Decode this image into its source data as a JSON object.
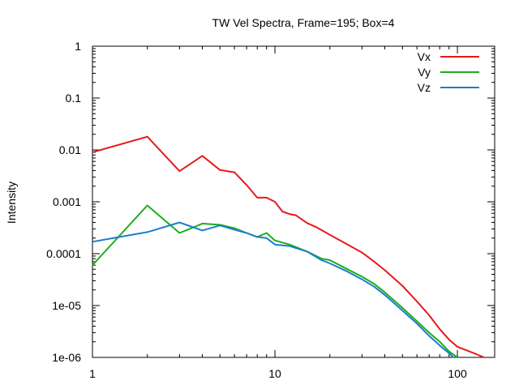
{
  "chart_data": {
    "type": "line",
    "title": "TW Vel Spectra, Frame=195; Box=4",
    "xlabel": "",
    "ylabel": "Intensity",
    "xscale": "log",
    "yscale": "log",
    "xlim": [
      1,
      160
    ],
    "ylim": [
      1e-06,
      1
    ],
    "grid": false,
    "legend_position": "top-right",
    "x_ticks": [
      {
        "value": 1,
        "label": "1"
      },
      {
        "value": 10,
        "label": "10"
      },
      {
        "value": 100,
        "label": "100"
      }
    ],
    "y_ticks": [
      {
        "value": 1,
        "label": "1"
      },
      {
        "value": 0.1,
        "label": "0.1"
      },
      {
        "value": 0.01,
        "label": "0.01"
      },
      {
        "value": 0.001,
        "label": "0.001"
      },
      {
        "value": 0.0001,
        "label": "0.0001"
      },
      {
        "value": 1e-05,
        "label": "1e-05"
      },
      {
        "value": 1e-06,
        "label": "1e-06"
      }
    ],
    "series": [
      {
        "name": "Vx",
        "color": "#e41a1c",
        "points": [
          [
            1,
            0.009
          ],
          [
            2,
            0.018
          ],
          [
            3,
            0.0039
          ],
          [
            4,
            0.0077
          ],
          [
            5,
            0.0041
          ],
          [
            6,
            0.0037
          ],
          [
            7,
            0.0021
          ],
          [
            8,
            0.0012
          ],
          [
            9,
            0.0012
          ],
          [
            10,
            0.001
          ],
          [
            11,
            0.00065
          ],
          [
            12,
            0.00058
          ],
          [
            13,
            0.00055
          ],
          [
            15,
            0.00039
          ],
          [
            17,
            0.00032
          ],
          [
            20,
            0.00023
          ],
          [
            25,
            0.00015
          ],
          [
            30,
            0.000105
          ],
          [
            35,
            7e-05
          ],
          [
            40,
            4.8e-05
          ],
          [
            50,
            2.4e-05
          ],
          [
            60,
            1.2e-05
          ],
          [
            70,
            6.5e-06
          ],
          [
            80,
            3.5e-06
          ],
          [
            90,
            2.2e-06
          ],
          [
            100,
            1.6e-06
          ],
          [
            120,
            1.25e-06
          ],
          [
            140,
            1e-06
          ]
        ]
      },
      {
        "name": "Vy",
        "color": "#1aae1a",
        "points": [
          [
            1,
            6e-05
          ],
          [
            2,
            0.00085
          ],
          [
            3,
            0.00025
          ],
          [
            4,
            0.00038
          ],
          [
            5,
            0.00036
          ],
          [
            6,
            0.00031
          ],
          [
            7,
            0.00025
          ],
          [
            8,
            0.00021
          ],
          [
            9,
            0.00025
          ],
          [
            10,
            0.00018
          ],
          [
            12,
            0.00015
          ],
          [
            15,
            0.00011
          ],
          [
            18,
            8e-05
          ],
          [
            20,
            7.5e-05
          ],
          [
            25,
            5e-05
          ],
          [
            30,
            3.6e-05
          ],
          [
            35,
            2.6e-05
          ],
          [
            40,
            1.8e-05
          ],
          [
            50,
            9e-06
          ],
          [
            60,
            5e-06
          ],
          [
            70,
            3e-06
          ],
          [
            80,
            2e-06
          ],
          [
            90,
            1.3e-06
          ],
          [
            100,
            1e-06
          ]
        ]
      },
      {
        "name": "Vz",
        "color": "#1c7dcf",
        "points": [
          [
            1,
            0.00017
          ],
          [
            2,
            0.00026
          ],
          [
            3,
            0.0004
          ],
          [
            4,
            0.00028
          ],
          [
            5,
            0.00035
          ],
          [
            6,
            0.00029
          ],
          [
            7,
            0.00025
          ],
          [
            8,
            0.00021
          ],
          [
            9,
            0.0002
          ],
          [
            10,
            0.00015
          ],
          [
            12,
            0.00014
          ],
          [
            15,
            0.00011
          ],
          [
            18,
            7.5e-05
          ],
          [
            20,
            6.5e-05
          ],
          [
            25,
            4.5e-05
          ],
          [
            30,
            3.2e-05
          ],
          [
            35,
            2.3e-05
          ],
          [
            40,
            1.6e-05
          ],
          [
            50,
            8e-06
          ],
          [
            60,
            4.5e-06
          ],
          [
            70,
            2.6e-06
          ],
          [
            80,
            1.7e-06
          ],
          [
            90,
            1.2e-06
          ],
          [
            95,
            1e-06
          ]
        ]
      }
    ]
  }
}
